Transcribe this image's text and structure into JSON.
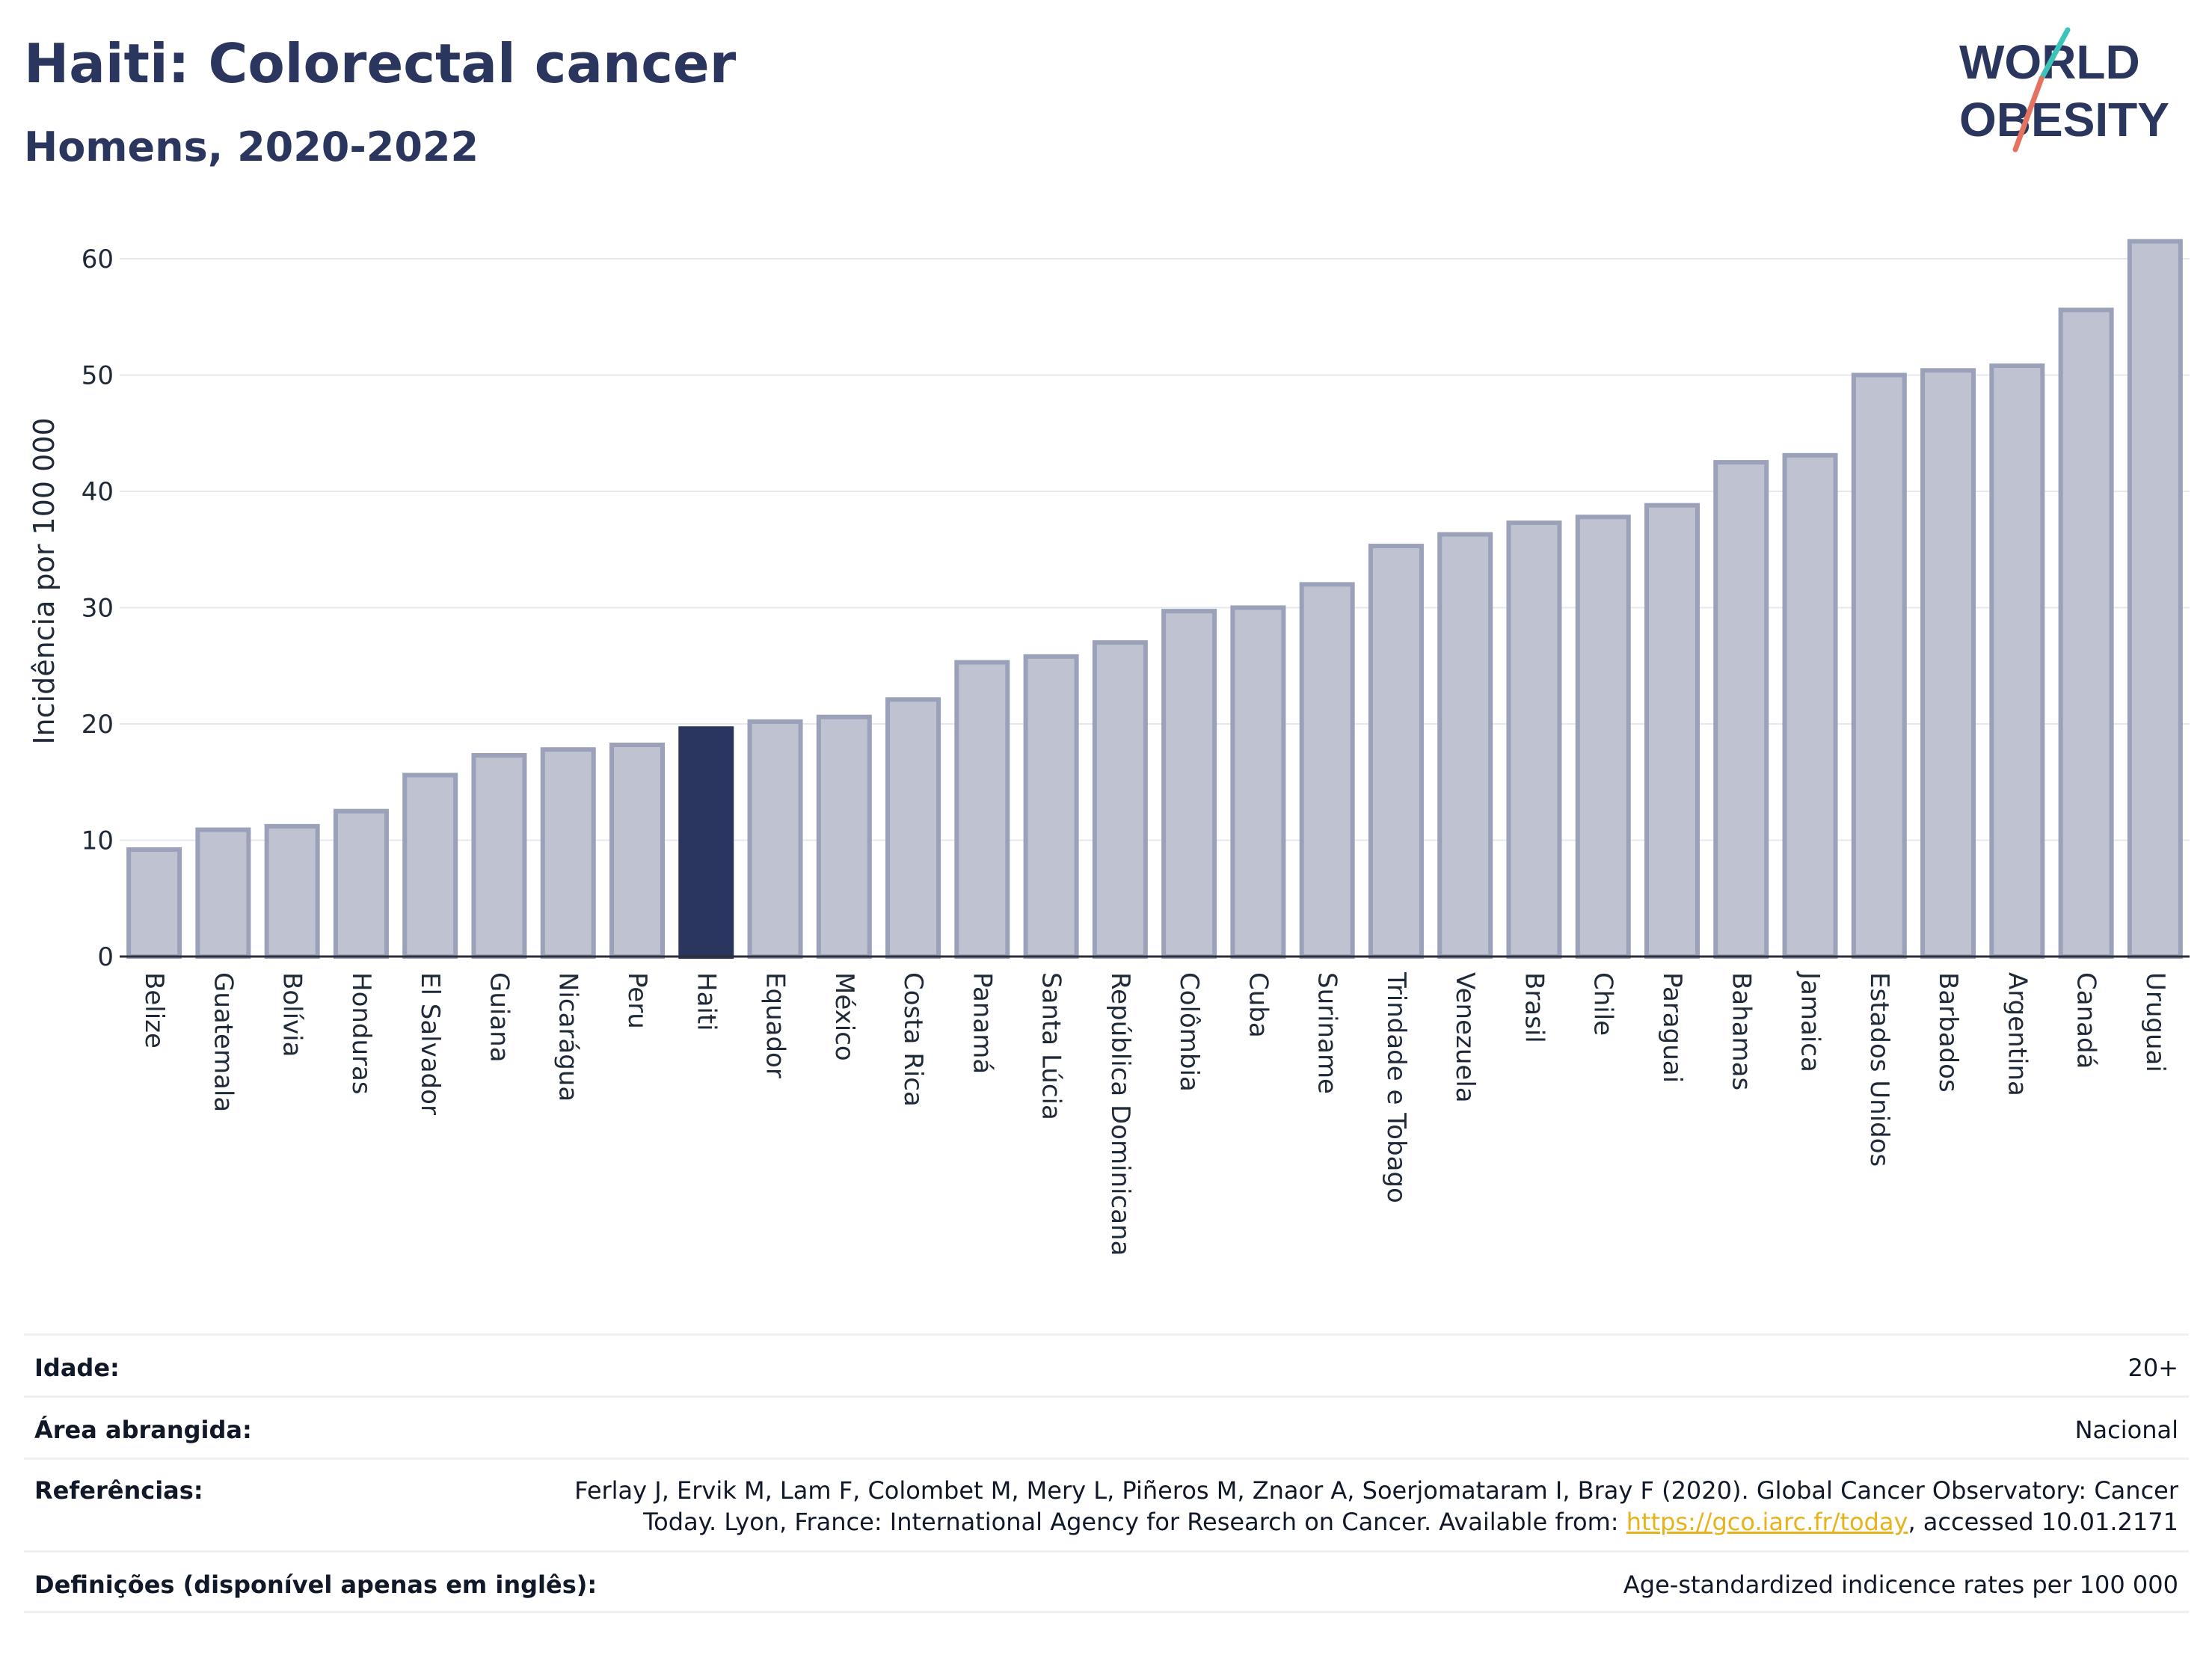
{
  "header": {
    "title": "Haiti: Colorectal cancer",
    "subtitle": "Homens, 2020-2022"
  },
  "logo": {
    "line1": "WORLD",
    "line2": "OBESITY"
  },
  "colors": {
    "highlight": "#2b365f",
    "bar_fill": "#bfc3d1",
    "bar_stroke": "#9aa1b8",
    "grid": "#e6e8ee"
  },
  "chart_data": {
    "type": "bar",
    "ylabel": "Incidência por 100 000",
    "ylim": [
      0,
      62
    ],
    "yticks": [
      0,
      10,
      20,
      30,
      40,
      50,
      60
    ],
    "grid": true,
    "highlight": "Haiti",
    "categories": [
      "Belize",
      "Guatemala",
      "Bolívia",
      "Honduras",
      "El Salvador",
      "Guiana",
      "Nicarágua",
      "Peru",
      "Haiti",
      "Equador",
      "México",
      "Costa Rica",
      "Panamá",
      "Santa Lúcia",
      "República Dominicana",
      "Colômbia",
      "Cuba",
      "Suriname",
      "Trindade e Tobago",
      "Venezuela",
      "Brasil",
      "Chile",
      "Paraguai",
      "Bahamas",
      "Jamaica",
      "Estados Unidos",
      "Barbados",
      "Argentina",
      "Canadá",
      "Uruguai"
    ],
    "values": [
      9.2,
      10.9,
      11.2,
      12.5,
      15.6,
      17.3,
      17.8,
      18.2,
      19.6,
      20.2,
      20.6,
      22.1,
      25.3,
      25.8,
      27.0,
      29.7,
      30.0,
      32.0,
      35.3,
      36.3,
      37.3,
      37.8,
      38.8,
      42.5,
      43.1,
      50.0,
      50.4,
      50.8,
      55.6,
      61.5
    ]
  },
  "meta": {
    "age_label": "Idade:",
    "age_value": "20+",
    "area_label": "Área abrangida:",
    "area_value": "Nacional",
    "ref_label": "Referências:",
    "ref_text_1": "Ferlay J, Ervik M, Lam F, Colombet M, Mery L, Piñeros M, Znaor A, Soerjomataram I, Bray F (2020). Global Cancer Observatory: Cancer",
    "ref_text_2": "Today. Lyon, France: International Agency for Research on Cancer. Available from: ",
    "ref_link": "https://gco.iarc.fr/today",
    "ref_text_3": ", accessed 10.01.2171",
    "def_label": "Definições (disponível apenas em inglês):",
    "def_value": "Age-standardized indicence rates per 100 000"
  }
}
